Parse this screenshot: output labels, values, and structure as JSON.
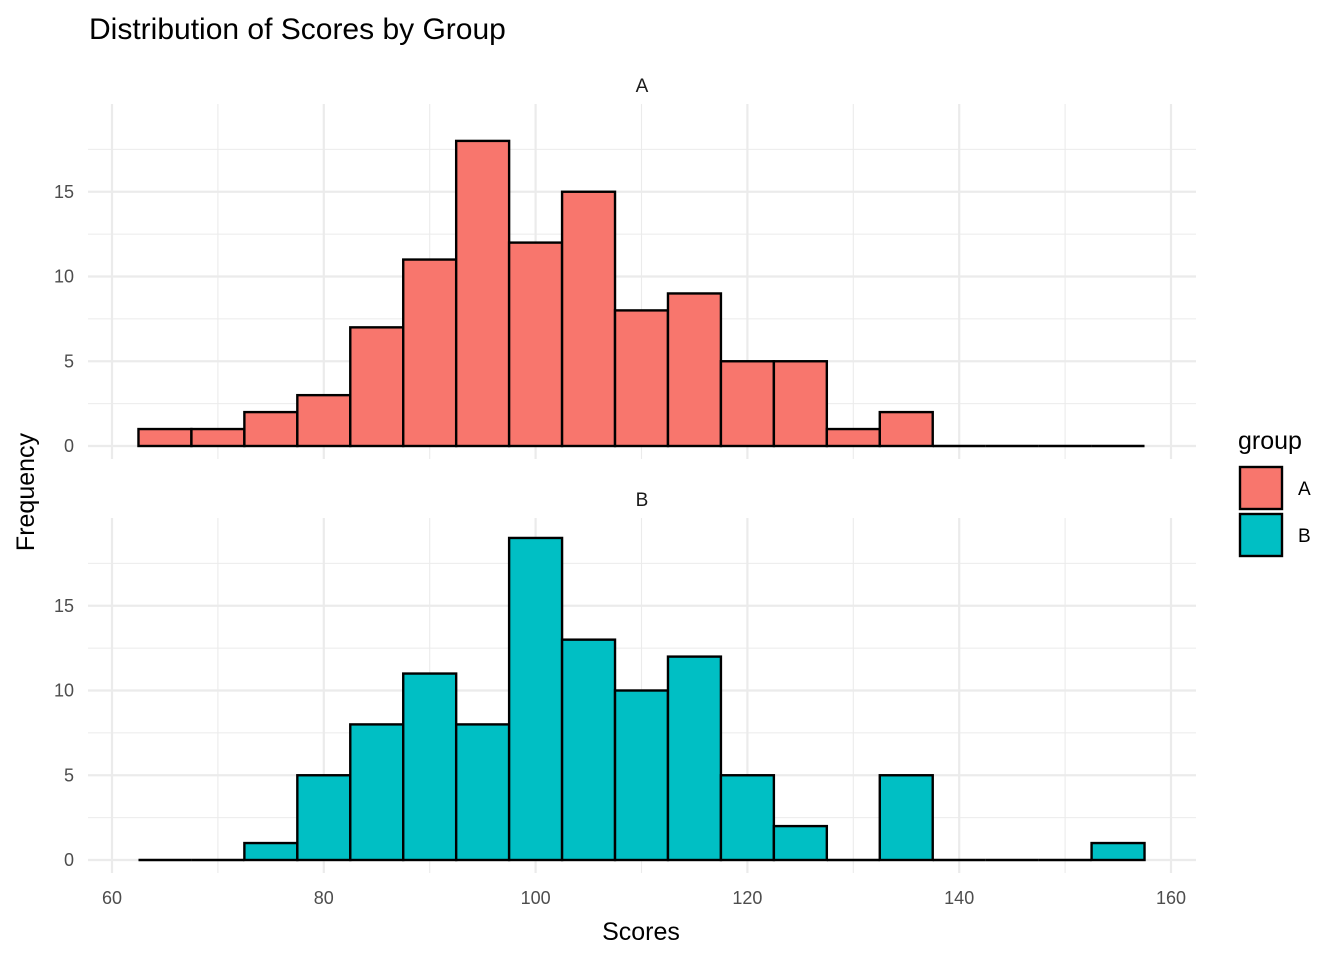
{
  "chart_data": {
    "type": "bar",
    "title": "Distribution of Scores by Group",
    "xlabel": "Scores",
    "ylabel": "Frequency",
    "bin_width": 5,
    "xlim": [
      60,
      160
    ],
    "x_ticks": [
      60,
      80,
      100,
      120,
      140,
      160
    ],
    "ylim": [
      0,
      19
    ],
    "y_ticks": [
      0,
      5,
      10,
      15
    ],
    "grid": true,
    "legend": {
      "title": "group",
      "position": "right"
    },
    "facets": [
      "A",
      "B"
    ],
    "bin_centers": [
      65,
      70,
      75,
      80,
      85,
      90,
      95,
      100,
      105,
      110,
      115,
      120,
      125,
      130,
      135,
      140,
      145,
      150,
      155
    ],
    "series": [
      {
        "name": "A",
        "color": "#F8766D",
        "values": [
          1,
          1,
          2,
          3,
          7,
          11,
          18,
          12,
          15,
          8,
          9,
          5,
          5,
          1,
          2,
          0,
          0,
          0,
          0
        ]
      },
      {
        "name": "B",
        "color": "#00BFC4",
        "values": [
          0,
          0,
          1,
          5,
          8,
          11,
          8,
          19,
          13,
          10,
          12,
          5,
          2,
          0,
          5,
          0,
          0,
          0,
          1
        ]
      }
    ]
  }
}
